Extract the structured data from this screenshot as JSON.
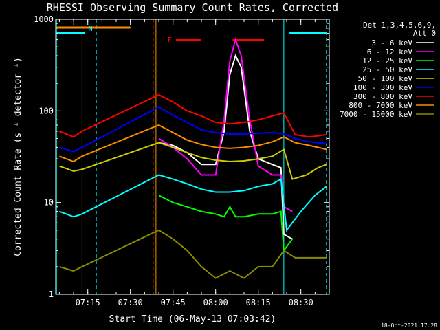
{
  "chart_data": {
    "type": "line",
    "title": "RHESSI Observing Summary Count Rates, Corrected",
    "xlabel": "Start Time (06-May-13 07:03:42)",
    "ylabel": "Corrected Count Rate (s⁻¹ detector⁻¹)",
    "y_scale": "log",
    "ylim": [
      1,
      1000
    ],
    "xlim": [
      "07:03:42",
      "08:40:00"
    ],
    "x_ticks": [
      "07:15",
      "07:30",
      "07:45",
      "08:00",
      "08:15",
      "08:30"
    ],
    "y_ticks": [
      "1",
      "10",
      "100",
      "1000"
    ],
    "footer": "18-Oct-2021 17:28",
    "legend": {
      "header_line1": "Det 1,3,4,5,6,9,",
      "header_line2": "Att 0",
      "position": "right"
    },
    "markers": [
      {
        "label": "S",
        "color": "#ff8c00",
        "start": "07:04",
        "end": "07:30"
      },
      {
        "label": "N",
        "color": "#00ffff",
        "start": "07:04",
        "end": "07:14",
        "start2": "08:26",
        "end2": "08:39"
      },
      {
        "label": "F",
        "color": "#ff0000",
        "segments": [
          [
            "07:46",
            "07:55"
          ],
          [
            "08:06",
            "08:17"
          ]
        ]
      }
    ],
    "vertical_lines": [
      {
        "time": "07:04",
        "color": "#00ffff",
        "style": "solid"
      },
      {
        "time": "07:13",
        "color": "#ff8c00",
        "style": "solid"
      },
      {
        "time": "07:18",
        "color": "#00ffff",
        "style": "dashed"
      },
      {
        "time": "07:38",
        "color": "#ff8c00",
        "style": "dashed"
      },
      {
        "time": "07:39",
        "color": "#ff8c00",
        "style": "solid"
      },
      {
        "time": "08:24",
        "color": "#00ffff",
        "style": "solid"
      },
      {
        "time": "08:39",
        "color": "#00ffff",
        "style": "dashed"
      }
    ],
    "series": [
      {
        "name": "3 - 6 keV",
        "color": "#ffffff",
        "points": [
          [
            "07:40",
            45
          ],
          [
            "07:45",
            42
          ],
          [
            "07:50",
            35
          ],
          [
            "07:55",
            26
          ],
          [
            "08:00",
            26
          ],
          [
            "08:03",
            60
          ],
          [
            "08:05",
            250
          ],
          [
            "08:07",
            400
          ],
          [
            "08:09",
            300
          ],
          [
            "08:12",
            60
          ],
          [
            "08:15",
            30
          ],
          [
            "08:20",
            26
          ],
          [
            "08:23",
            24
          ],
          [
            "08:24",
            4.5
          ],
          [
            "08:27",
            4
          ]
        ]
      },
      {
        "name": "6 - 12 keV",
        "color": "#ff00ff",
        "points": [
          [
            "07:40",
            50
          ],
          [
            "07:45",
            40
          ],
          [
            "07:50",
            30
          ],
          [
            "07:55",
            20
          ],
          [
            "08:00",
            20
          ],
          [
            "08:03",
            80
          ],
          [
            "08:05",
            350
          ],
          [
            "08:07",
            600
          ],
          [
            "08:09",
            400
          ],
          [
            "08:12",
            80
          ],
          [
            "08:15",
            25
          ],
          [
            "08:20",
            20
          ],
          [
            "08:23",
            20
          ],
          [
            "08:24",
            9
          ],
          [
            "08:27",
            8
          ]
        ]
      },
      {
        "name": "12 - 25 keV",
        "color": "#00ff00",
        "points": [
          [
            "07:40",
            12
          ],
          [
            "07:45",
            10
          ],
          [
            "07:50",
            9
          ],
          [
            "07:55",
            8
          ],
          [
            "08:00",
            7.5
          ],
          [
            "08:03",
            7
          ],
          [
            "08:05",
            9
          ],
          [
            "08:07",
            7
          ],
          [
            "08:10",
            7
          ],
          [
            "08:15",
            7.5
          ],
          [
            "08:20",
            7.5
          ],
          [
            "08:23",
            8
          ],
          [
            "08:24",
            3
          ],
          [
            "08:27",
            4
          ]
        ]
      },
      {
        "name": "25 - 50 keV",
        "color": "#00ffff",
        "points": [
          [
            "07:05",
            8
          ],
          [
            "07:10",
            7
          ],
          [
            "07:13",
            7.5
          ],
          [
            "07:40",
            20
          ],
          [
            "07:45",
            18
          ],
          [
            "07:50",
            16
          ],
          [
            "07:55",
            14
          ],
          [
            "08:00",
            13
          ],
          [
            "08:05",
            13
          ],
          [
            "08:10",
            13.5
          ],
          [
            "08:15",
            15
          ],
          [
            "08:20",
            16
          ],
          [
            "08:23",
            18
          ],
          [
            "08:25",
            5
          ],
          [
            "08:30",
            8
          ],
          [
            "08:35",
            12
          ],
          [
            "08:39",
            15
          ]
        ]
      },
      {
        "name": "50 - 100 keV",
        "color": "#cccc00",
        "points": [
          [
            "07:05",
            25
          ],
          [
            "07:10",
            22
          ],
          [
            "07:13",
            23
          ],
          [
            "07:40",
            45
          ],
          [
            "07:45",
            40
          ],
          [
            "07:50",
            35
          ],
          [
            "07:55",
            31
          ],
          [
            "08:00",
            29
          ],
          [
            "08:05",
            28
          ],
          [
            "08:10",
            28.5
          ],
          [
            "08:15",
            30
          ],
          [
            "08:20",
            32
          ],
          [
            "08:24",
            38
          ],
          [
            "08:27",
            18
          ],
          [
            "08:32",
            20
          ],
          [
            "08:36",
            24
          ],
          [
            "08:39",
            26
          ]
        ]
      },
      {
        "name": "100 - 300 keV",
        "color": "#0000ff",
        "points": [
          [
            "07:05",
            40
          ],
          [
            "07:10",
            36
          ],
          [
            "07:13",
            40
          ],
          [
            "07:40",
            110
          ],
          [
            "07:45",
            90
          ],
          [
            "07:50",
            75
          ],
          [
            "07:55",
            62
          ],
          [
            "08:00",
            58
          ],
          [
            "08:05",
            56
          ],
          [
            "08:10",
            56
          ],
          [
            "08:15",
            57
          ],
          [
            "08:20",
            58
          ],
          [
            "08:24",
            56
          ],
          [
            "08:28",
            50
          ],
          [
            "08:33",
            46
          ],
          [
            "08:39",
            44
          ]
        ]
      },
      {
        "name": "300 - 800 keV",
        "color": "#ff0000",
        "points": [
          [
            "07:05",
            60
          ],
          [
            "07:10",
            52
          ],
          [
            "07:13",
            60
          ],
          [
            "07:40",
            150
          ],
          [
            "07:45",
            125
          ],
          [
            "07:50",
            100
          ],
          [
            "07:55",
            88
          ],
          [
            "08:00",
            75
          ],
          [
            "08:05",
            72
          ],
          [
            "08:10",
            75
          ],
          [
            "08:15",
            80
          ],
          [
            "08:20",
            88
          ],
          [
            "08:24",
            95
          ],
          [
            "08:28",
            55
          ],
          [
            "08:33",
            52
          ],
          [
            "08:39",
            55
          ]
        ]
      },
      {
        "name": "800 - 7000 keV",
        "color": "#ff8c00",
        "points": [
          [
            "07:05",
            32
          ],
          [
            "07:10",
            28
          ],
          [
            "07:13",
            32
          ],
          [
            "07:40",
            70
          ],
          [
            "07:45",
            58
          ],
          [
            "07:50",
            48
          ],
          [
            "07:55",
            43
          ],
          [
            "08:00",
            40
          ],
          [
            "08:05",
            39
          ],
          [
            "08:10",
            40
          ],
          [
            "08:15",
            42
          ],
          [
            "08:20",
            46
          ],
          [
            "08:24",
            52
          ],
          [
            "08:28",
            45
          ],
          [
            "08:33",
            42
          ],
          [
            "08:39",
            38
          ]
        ]
      },
      {
        "name": "7000 - 15000 keV",
        "color": "#8b8b00",
        "points": [
          [
            "07:05",
            2
          ],
          [
            "07:10",
            1.8
          ],
          [
            "07:13",
            2
          ],
          [
            "07:40",
            5
          ],
          [
            "07:45",
            4
          ],
          [
            "07:50",
            3
          ],
          [
            "07:55",
            2
          ],
          [
            "08:00",
            1.5
          ],
          [
            "08:05",
            1.8
          ],
          [
            "08:10",
            1.5
          ],
          [
            "08:15",
            2
          ],
          [
            "08:20",
            2
          ],
          [
            "08:24",
            3
          ],
          [
            "08:28",
            2.5
          ],
          [
            "08:33",
            2.5
          ],
          [
            "08:39",
            2.5
          ]
        ]
      }
    ]
  }
}
